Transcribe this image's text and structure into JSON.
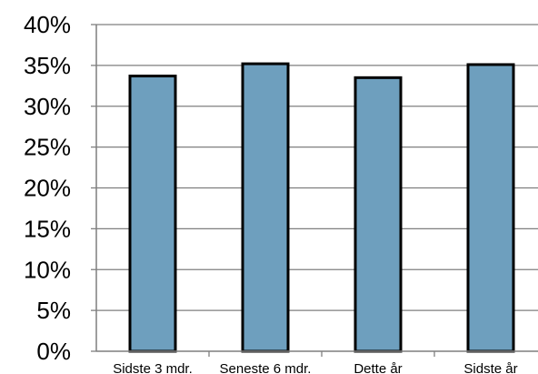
{
  "chart_data": {
    "type": "bar",
    "title": "",
    "xlabel": "",
    "ylabel": "",
    "categories": [
      "Sidste 3 mdr.",
      "Seneste 6 mdr.",
      "Dette år",
      "Sidste år"
    ],
    "values": [
      33.7,
      35.2,
      33.5,
      35.1
    ],
    "ylim": [
      0,
      40
    ],
    "yticks": [
      0,
      5,
      10,
      15,
      20,
      25,
      30,
      35,
      40
    ],
    "ytick_suffix": "%",
    "grid": true,
    "legend": "none",
    "colors": {
      "bar_fill": "#6e9fbe",
      "bar_stroke": "#000000",
      "grid": "#7f7f7f",
      "axis": "#7f7f7f",
      "background": "#ffffff"
    }
  }
}
